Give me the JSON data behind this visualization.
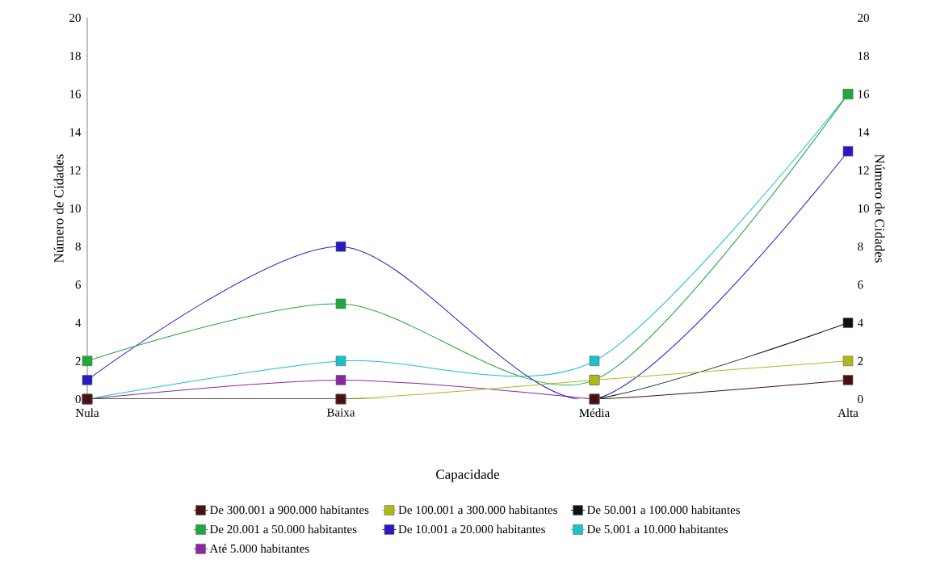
{
  "chart_data": {
    "type": "line",
    "xlabel": "Capacidade",
    "ylabel": "Número de Cidades",
    "y2label": "Número de Cidades",
    "categories": [
      "Nula",
      "Baixa",
      "Média",
      "Alta"
    ],
    "ylim": [
      0,
      20
    ],
    "yticks": [
      0,
      2,
      4,
      6,
      8,
      10,
      12,
      14,
      16,
      18,
      20
    ],
    "y2lim": [
      0,
      20
    ],
    "y2ticks": [
      0,
      2,
      4,
      6,
      8,
      10,
      12,
      14,
      16,
      18,
      20
    ],
    "marker": "square",
    "legend": "bottom",
    "series": [
      {
        "name": "De 300.001 a 900.000 habitantes",
        "color": "#4a0f10",
        "values": [
          0,
          0,
          0,
          1
        ]
      },
      {
        "name": "De 100.001 a 300.000 habitantes",
        "color": "#b0b818",
        "values": [
          0,
          0,
          1,
          2
        ]
      },
      {
        "name": "De 50.001 a 100.000 habitantes",
        "color": "#0a1418",
        "values": [
          0,
          0,
          0,
          4
        ]
      },
      {
        "name": "De 20.001 a 50.000 habitantes",
        "color": "#1fa83c",
        "values": [
          2,
          5,
          1,
          16
        ]
      },
      {
        "name": "De 10.001 a 20.000 habitantes",
        "color": "#2a1ac0",
        "values": [
          1,
          8,
          0,
          13
        ]
      },
      {
        "name": "De 5.001 a 10.000 habitantes",
        "color": "#1ec0c8",
        "values": [
          0,
          2,
          2,
          16
        ]
      },
      {
        "name": "Até 5.000 habitantes",
        "color": "#8a2aa0",
        "values": [
          0,
          1,
          0,
          null
        ]
      }
    ]
  }
}
